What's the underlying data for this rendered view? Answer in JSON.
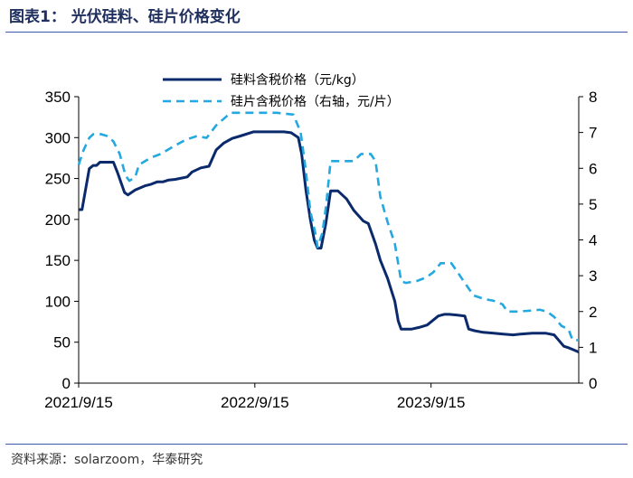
{
  "title": "图表1：  光伏硅料、硅片价格变化",
  "source": "资料来源：solarzoom，华泰研究",
  "chart_data": {
    "type": "line",
    "y_left": {
      "ticks": [
        0,
        50,
        100,
        150,
        200,
        250,
        300,
        350
      ],
      "lim": [
        0,
        350
      ]
    },
    "y_right": {
      "ticks": [
        0,
        1,
        2,
        3,
        4,
        5,
        6,
        7,
        8
      ],
      "lim": [
        0,
        8
      ]
    },
    "x_ticks": [
      {
        "label": "2021/9/15",
        "t": 0
      },
      {
        "label": "2022/9/15",
        "t": 365
      },
      {
        "label": "2023/9/15",
        "t": 730
      }
    ],
    "x_lim": [
      0,
      1036
    ],
    "series": [
      {
        "name": "硅料含税价格（元/kg）",
        "axis": "left",
        "color": "#0b2a6b",
        "style": "solid",
        "points": [
          [
            0,
            212
          ],
          [
            7,
            212
          ],
          [
            22,
            262
          ],
          [
            30,
            266
          ],
          [
            37,
            266
          ],
          [
            44,
            270
          ],
          [
            72,
            270
          ],
          [
            80,
            258
          ],
          [
            95,
            233
          ],
          [
            102,
            230
          ],
          [
            117,
            236
          ],
          [
            137,
            241
          ],
          [
            150,
            243
          ],
          [
            163,
            246
          ],
          [
            175,
            246
          ],
          [
            185,
            248
          ],
          [
            200,
            249
          ],
          [
            225,
            252
          ],
          [
            235,
            258
          ],
          [
            253,
            263
          ],
          [
            270,
            265
          ],
          [
            285,
            285
          ],
          [
            300,
            293
          ],
          [
            318,
            299
          ],
          [
            335,
            302
          ],
          [
            362,
            307
          ],
          [
            400,
            307
          ],
          [
            425,
            307
          ],
          [
            440,
            306
          ],
          [
            455,
            300
          ],
          [
            462,
            280
          ],
          [
            471,
            235
          ],
          [
            480,
            200
          ],
          [
            488,
            175
          ],
          [
            495,
            165
          ],
          [
            502,
            165
          ],
          [
            512,
            195
          ],
          [
            522,
            235
          ],
          [
            537,
            235
          ],
          [
            555,
            225
          ],
          [
            570,
            211
          ],
          [
            590,
            198
          ],
          [
            600,
            195
          ],
          [
            615,
            170
          ],
          [
            625,
            150
          ],
          [
            640,
            128
          ],
          [
            655,
            100
          ],
          [
            662,
            76
          ],
          [
            668,
            66
          ],
          [
            690,
            66
          ],
          [
            705,
            68
          ],
          [
            722,
            71
          ],
          [
            745,
            82
          ],
          [
            757,
            84
          ],
          [
            768,
            84
          ],
          [
            785,
            83
          ],
          [
            800,
            82
          ],
          [
            808,
            66
          ],
          [
            820,
            64
          ],
          [
            838,
            62
          ],
          [
            860,
            61
          ],
          [
            880,
            60
          ],
          [
            900,
            59
          ],
          [
            915,
            60
          ],
          [
            940,
            61
          ],
          [
            968,
            61
          ],
          [
            985,
            59
          ],
          [
            998,
            50
          ],
          [
            1005,
            45
          ],
          [
            1016,
            43
          ],
          [
            1036,
            38
          ]
        ]
      },
      {
        "name": "硅片含税价格（右轴，元/片）",
        "axis": "right",
        "color": "#24a8e0",
        "style": "dashed",
        "points": [
          [
            0,
            6.1
          ],
          [
            10,
            6.5
          ],
          [
            22,
            6.85
          ],
          [
            30,
            6.95
          ],
          [
            47,
            6.95
          ],
          [
            60,
            6.9
          ],
          [
            72,
            6.75
          ],
          [
            85,
            6.4
          ],
          [
            97,
            5.8
          ],
          [
            105,
            5.65
          ],
          [
            117,
            5.75
          ],
          [
            125,
            6.1
          ],
          [
            150,
            6.3
          ],
          [
            170,
            6.4
          ],
          [
            195,
            6.6
          ],
          [
            222,
            6.8
          ],
          [
            245,
            6.9
          ],
          [
            265,
            6.85
          ],
          [
            285,
            7.2
          ],
          [
            302,
            7.4
          ],
          [
            315,
            7.55
          ],
          [
            340,
            7.55
          ],
          [
            410,
            7.55
          ],
          [
            445,
            7.5
          ],
          [
            460,
            7.0
          ],
          [
            470,
            6.0
          ],
          [
            480,
            4.8
          ],
          [
            490,
            4.2
          ],
          [
            495,
            3.8
          ],
          [
            505,
            4.2
          ],
          [
            513,
            5.0
          ],
          [
            522,
            6.2
          ],
          [
            535,
            6.2
          ],
          [
            570,
            6.2
          ],
          [
            585,
            6.4
          ],
          [
            605,
            6.4
          ],
          [
            615,
            6.2
          ],
          [
            625,
            5.2
          ],
          [
            640,
            4.5
          ],
          [
            655,
            3.9
          ],
          [
            668,
            2.85
          ],
          [
            678,
            2.8
          ],
          [
            700,
            2.85
          ],
          [
            720,
            2.95
          ],
          [
            735,
            3.1
          ],
          [
            750,
            3.35
          ],
          [
            772,
            3.35
          ],
          [
            785,
            3.1
          ],
          [
            800,
            2.8
          ],
          [
            818,
            2.45
          ],
          [
            840,
            2.35
          ],
          [
            860,
            2.3
          ],
          [
            878,
            2.2
          ],
          [
            888,
            2.0
          ],
          [
            910,
            2.0
          ],
          [
            930,
            2.02
          ],
          [
            955,
            2.05
          ],
          [
            970,
            2.0
          ],
          [
            985,
            1.85
          ],
          [
            1000,
            1.6
          ],
          [
            1015,
            1.5
          ],
          [
            1023,
            1.2
          ],
          [
            1036,
            1.2
          ]
        ]
      }
    ]
  }
}
